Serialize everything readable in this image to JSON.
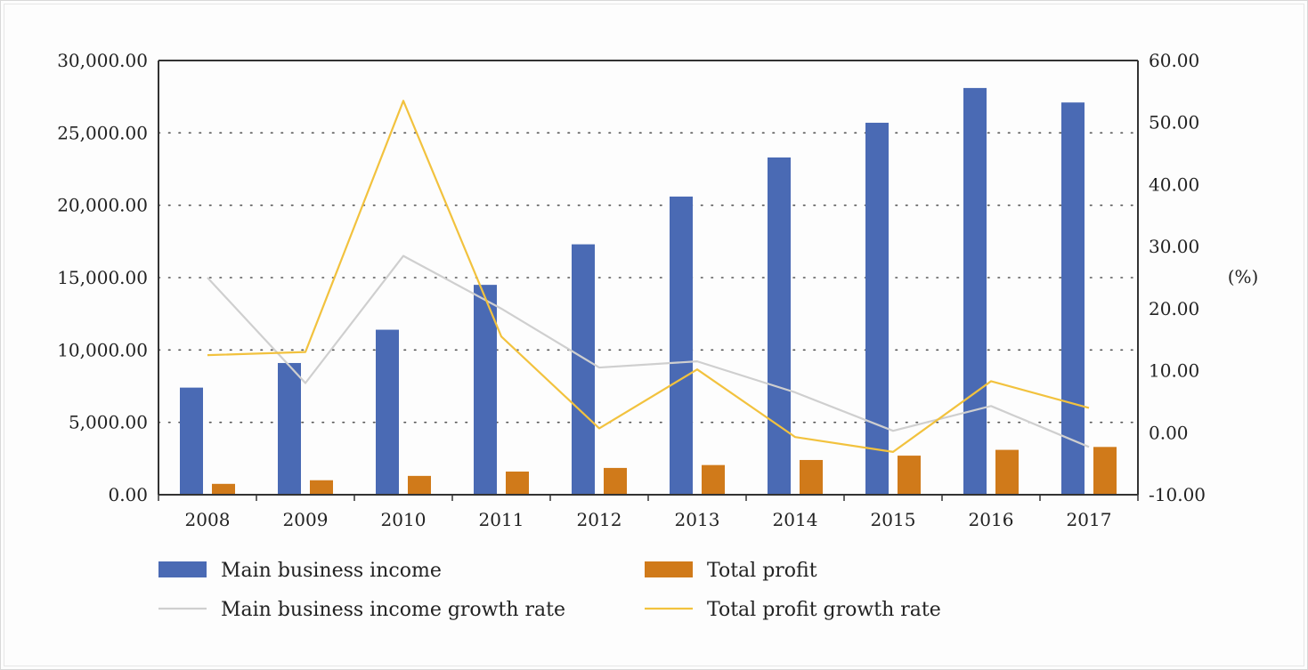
{
  "chart_data": {
    "type": "bar",
    "categories": [
      "2008",
      "2009",
      "2010",
      "2011",
      "2012",
      "2013",
      "2014",
      "2015",
      "2016",
      "2017"
    ],
    "left_axis": {
      "ylim": [
        0,
        30000
      ],
      "ticks": [
        0,
        5000,
        10000,
        15000,
        20000,
        25000,
        30000
      ],
      "tick_labels": [
        "0.00",
        "5,000.00",
        "10,000.00",
        "15,000.00",
        "20,000.00",
        "25,000.00",
        "30,000.00"
      ]
    },
    "right_axis": {
      "ylim": [
        -10,
        60
      ],
      "ticks": [
        -10,
        0,
        10,
        20,
        30,
        40,
        50,
        60
      ],
      "tick_labels": [
        "-10.00",
        "0.00",
        "10.00",
        "20.00",
        "30.00",
        "40.00",
        "50.00",
        "60.00"
      ],
      "label": "(%)"
    },
    "grid": "dotted horizontal",
    "legend_position": "bottom",
    "series": [
      {
        "name": "Main business income",
        "kind": "bar",
        "axis": "left",
        "color": "#4a6ab4",
        "values": [
          7400,
          9100,
          11400,
          14500,
          17300,
          20600,
          23300,
          25700,
          28100,
          27100
        ]
      },
      {
        "name": "Total profit",
        "kind": "bar",
        "axis": "left",
        "color": "#d07a1a",
        "values": [
          750,
          1000,
          1300,
          1600,
          1850,
          2050,
          2400,
          2700,
          3100,
          3300
        ]
      },
      {
        "name": "Main business income growth rate",
        "kind": "line",
        "axis": "right",
        "color": "#cfcfcf",
        "values": [
          25.0,
          8.0,
          28.5,
          20.0,
          10.5,
          11.5,
          6.5,
          0.3,
          4.3,
          -2.3
        ]
      },
      {
        "name": "Total profit growth rate",
        "kind": "line",
        "axis": "right",
        "color": "#f2c23e",
        "values": [
          12.5,
          13.0,
          53.5,
          15.5,
          0.7,
          10.2,
          -0.7,
          -3.1,
          8.3,
          4.0
        ]
      }
    ]
  }
}
